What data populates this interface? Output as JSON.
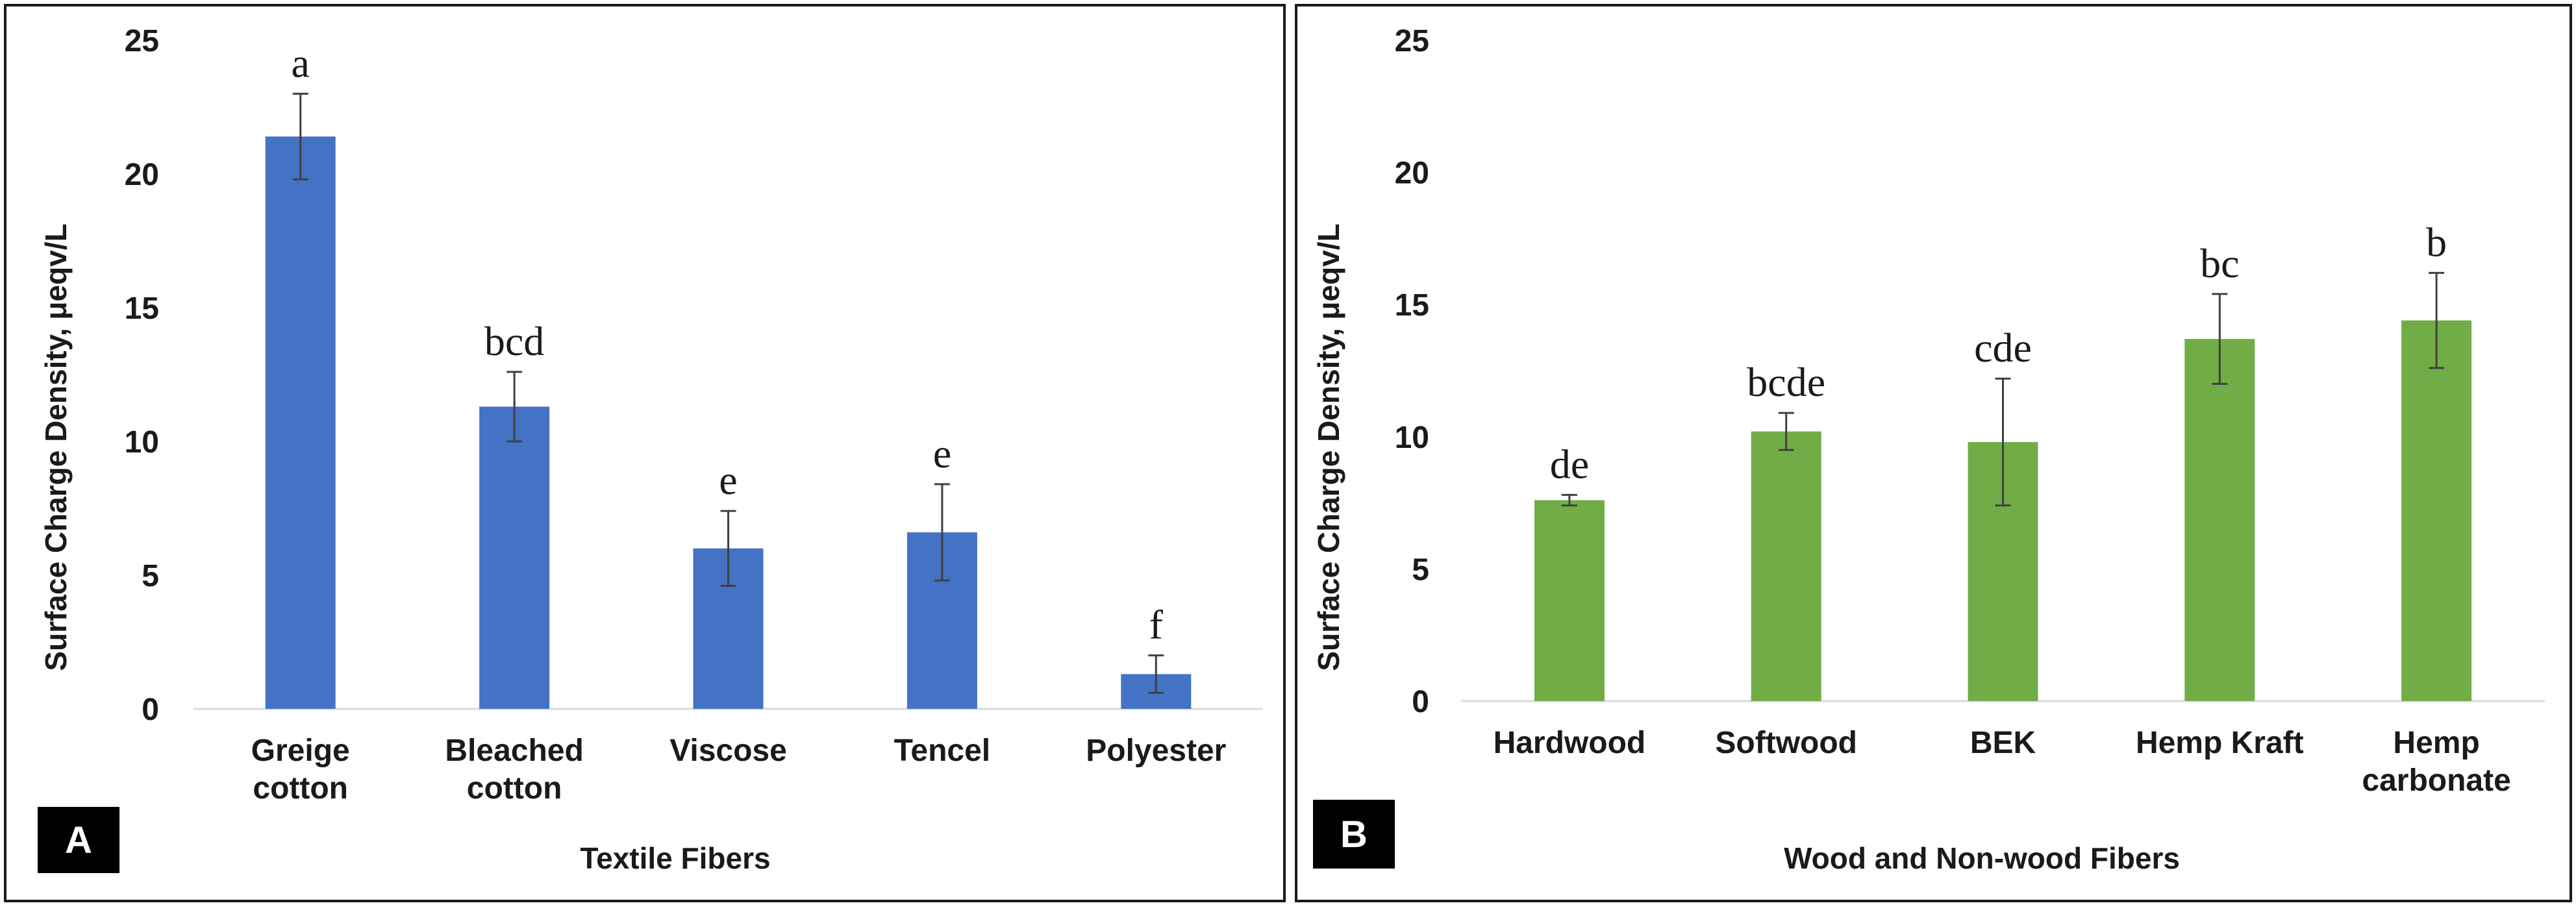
{
  "chart_data": [
    {
      "type": "bar",
      "panel_label": "A",
      "title": "",
      "xlabel": "Textile Fibers",
      "ylabel": "Surface Charge Density, μeqv/L",
      "ylim": [
        0,
        25
      ],
      "yticks": [
        "0",
        "5",
        "10",
        "15",
        "20",
        "25"
      ],
      "categories": [
        [
          "Greige",
          "cotton"
        ],
        [
          "Bleached",
          "cotton"
        ],
        [
          "Viscose"
        ],
        [
          "Tencel"
        ],
        [
          "Polyester"
        ]
      ],
      "values": [
        21.4,
        11.3,
        6.0,
        6.6,
        1.3
      ],
      "errors": [
        1.6,
        1.3,
        1.4,
        1.8,
        0.7
      ],
      "significance_letters": [
        "a",
        "bcd",
        "e",
        "e",
        "f"
      ],
      "bar_color": "#4472c4"
    },
    {
      "type": "bar",
      "panel_label": "B",
      "title": "",
      "xlabel": "Wood and Non-wood Fibers",
      "ylabel": "Surface Charge Density, μeqv/L",
      "ylim": [
        0,
        25
      ],
      "yticks": [
        "0",
        "5",
        "10",
        "15",
        "20",
        "25"
      ],
      "categories": [
        [
          "Hardwood"
        ],
        [
          "Softwood"
        ],
        [
          "BEK"
        ],
        [
          "Hemp Kraft"
        ],
        [
          "Hemp",
          "carbonate"
        ]
      ],
      "values": [
        7.6,
        10.2,
        9.8,
        13.7,
        14.4
      ],
      "errors": [
        0.2,
        0.7,
        2.4,
        1.7,
        1.8
      ],
      "significance_letters": [
        "de",
        "bcde",
        "cde",
        "bc",
        "b"
      ],
      "bar_color": "#70ad47"
    }
  ]
}
